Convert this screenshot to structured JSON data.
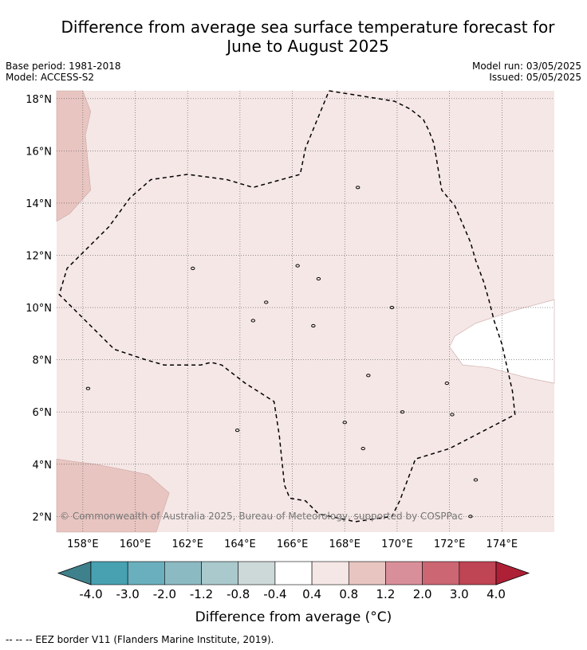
{
  "title_line1": "Difference from average sea surface temperature forecast for",
  "title_line2": "June to August 2025",
  "base_period": "Base period: 1981-2018",
  "model": "Model: ACCESS-S2",
  "model_run": "Model run: 03/05/2025",
  "issued": "Issued: 05/05/2025",
  "copyright": "© Commonwealth of Australia 2025, Bureau of Meteorology, supported by COSPPac",
  "map": {
    "lon_range": [
      157.0,
      176.0
    ],
    "lat_range": [
      1.4,
      18.3
    ],
    "lon_ticks": [
      {
        "value": 158,
        "label": "158°E"
      },
      {
        "value": 160,
        "label": "160°E"
      },
      {
        "value": 162,
        "label": "162°E"
      },
      {
        "value": 164,
        "label": "164°E"
      },
      {
        "value": 166,
        "label": "166°E"
      },
      {
        "value": 168,
        "label": "168°E"
      },
      {
        "value": 170,
        "label": "170°E"
      },
      {
        "value": 172,
        "label": "172°E"
      },
      {
        "value": 174,
        "label": "174°E"
      }
    ],
    "lat_ticks": [
      {
        "value": 2,
        "label": "2°N"
      },
      {
        "value": 4,
        "label": "4°N"
      },
      {
        "value": 6,
        "label": "6°N"
      },
      {
        "value": 8,
        "label": "8°N"
      },
      {
        "value": 10,
        "label": "10°N"
      },
      {
        "value": 12,
        "label": "12°N"
      },
      {
        "value": 14,
        "label": "14°N"
      },
      {
        "value": 16,
        "label": "16°N"
      },
      {
        "value": 18,
        "label": "18°N"
      }
    ],
    "background_color": "#f5e7e6",
    "regions": [
      {
        "range": "0.8 to 1.2",
        "color": "#e8c5c1",
        "points": [
          [
            157.0,
            18.3
          ],
          [
            158.0,
            18.3
          ],
          [
            158.3,
            17.5
          ],
          [
            158.1,
            16.6
          ],
          [
            158.2,
            15.5
          ],
          [
            158.3,
            14.5
          ],
          [
            157.5,
            13.6
          ],
          [
            157.0,
            13.3
          ]
        ]
      },
      {
        "range": "0.8 to 1.2",
        "color": "#e8c5c1",
        "points": [
          [
            157.0,
            4.2
          ],
          [
            157.7,
            4.1
          ],
          [
            158.5,
            4.0
          ],
          [
            159.5,
            3.8
          ],
          [
            160.5,
            3.6
          ],
          [
            161.3,
            2.9
          ],
          [
            160.8,
            1.4
          ],
          [
            157.0,
            1.4
          ]
        ]
      },
      {
        "range": "-0.4 to 0.4",
        "color": "#ffffff",
        "points": [
          [
            176.0,
            10.3
          ],
          [
            174.5,
            9.9
          ],
          [
            173.0,
            9.4
          ],
          [
            172.2,
            8.9
          ],
          [
            172.0,
            8.5
          ],
          [
            172.5,
            7.8
          ],
          [
            173.5,
            7.7
          ],
          [
            175.0,
            7.3
          ],
          [
            176.0,
            7.1
          ]
        ]
      }
    ],
    "eez_border": [
      [
        167.4,
        18.3
      ],
      [
        169.9,
        17.9
      ],
      [
        170.5,
        17.6
      ],
      [
        171.0,
        17.2
      ],
      [
        171.2,
        16.8
      ],
      [
        171.4,
        16.3
      ],
      [
        171.5,
        15.7
      ],
      [
        171.7,
        14.5
      ],
      [
        172.2,
        13.9
      ],
      [
        172.5,
        13.2
      ],
      [
        172.8,
        12.5
      ],
      [
        173.0,
        11.8
      ],
      [
        173.3,
        11.0
      ],
      [
        173.5,
        10.3
      ],
      [
        173.7,
        9.5
      ],
      [
        174.0,
        8.6
      ],
      [
        174.2,
        7.7
      ],
      [
        174.4,
        6.8
      ],
      [
        174.5,
        5.9
      ],
      [
        172.0,
        4.6
      ],
      [
        170.7,
        4.2
      ],
      [
        170.1,
        2.6
      ],
      [
        169.8,
        2.0
      ],
      [
        168.4,
        1.8
      ],
      [
        167.0,
        2.1
      ],
      [
        166.5,
        2.6
      ],
      [
        165.9,
        2.7
      ],
      [
        165.7,
        3.2
      ],
      [
        165.5,
        5.1
      ],
      [
        165.3,
        6.4
      ],
      [
        164.2,
        7.1
      ],
      [
        163.3,
        7.8
      ],
      [
        162.9,
        7.9
      ],
      [
        162.5,
        7.8
      ],
      [
        161.1,
        7.8
      ],
      [
        160.4,
        8.0
      ],
      [
        159.2,
        8.4
      ],
      [
        158.3,
        9.3
      ],
      [
        157.5,
        10.1
      ],
      [
        157.1,
        10.5
      ],
      [
        157.4,
        11.5
      ],
      [
        158.2,
        12.3
      ],
      [
        159.0,
        13.1
      ],
      [
        159.8,
        14.2
      ],
      [
        160.6,
        14.9
      ],
      [
        162.0,
        15.1
      ],
      [
        163.5,
        14.9
      ],
      [
        164.5,
        14.6
      ],
      [
        166.3,
        15.1
      ],
      [
        166.5,
        16.1
      ],
      [
        167.4,
        18.3
      ]
    ],
    "islands": [
      [
        158.2,
        6.9
      ],
      [
        163.9,
        5.3
      ],
      [
        168.7,
        4.6
      ],
      [
        173.0,
        3.4
      ],
      [
        172.8,
        2.0
      ],
      [
        171.9,
        7.1
      ],
      [
        170.2,
        6.0
      ],
      [
        168.9,
        7.4
      ],
      [
        168.0,
        5.6
      ],
      [
        166.2,
        11.6
      ],
      [
        162.2,
        11.5
      ],
      [
        167.0,
        11.1
      ],
      [
        165.0,
        10.2
      ],
      [
        169.8,
        10.0
      ],
      [
        164.5,
        9.5
      ],
      [
        166.8,
        9.3
      ],
      [
        168.5,
        14.6
      ],
      [
        172.1,
        5.9
      ]
    ]
  },
  "colorbar": {
    "colors": [
      "#3e818c",
      "#47a1b0",
      "#6aafbd",
      "#8cbac2",
      "#a9c9cc",
      "#cdd8d8",
      "#ffffff",
      "#f5e7e6",
      "#e8c5c1",
      "#d98f99",
      "#cc6673",
      "#bf4454",
      "#ae2036"
    ],
    "tick_labels": [
      "-4.0",
      "-3.0",
      "-2.0",
      "-1.2",
      "-0.8",
      "-0.4",
      "0.4",
      "0.8",
      "1.2",
      "2.0",
      "3.0",
      "4.0"
    ],
    "label": "Difference from average (°C)"
  },
  "footnote": "--  --  -- EEZ border V11 (Flanders Marine Institute, 2019)."
}
